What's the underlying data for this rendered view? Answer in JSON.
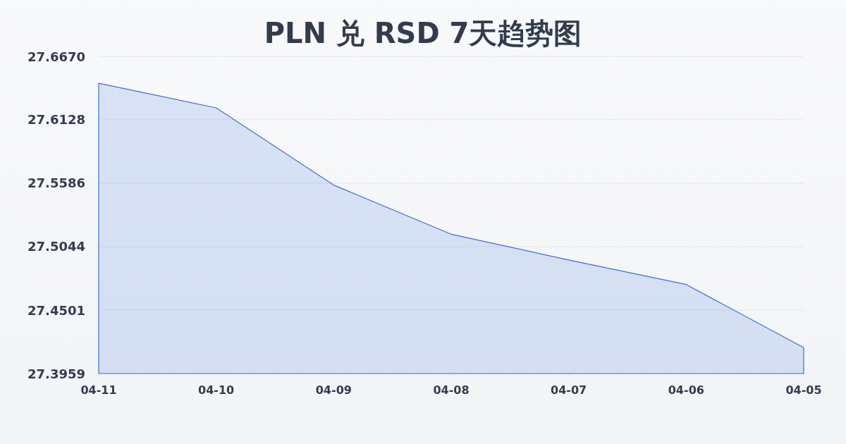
{
  "chart_data": {
    "type": "area",
    "title": "PLN 兑 RSD 7天趋势图",
    "categories": [
      "04-11",
      "04-10",
      "04-09",
      "04-08",
      "04-07",
      "04-06",
      "04-05"
    ],
    "series": [
      {
        "color": "#3b6fd8",
        "values": [
          27.644,
          27.623,
          27.557,
          27.515,
          27.493,
          27.472,
          27.418
        ]
      }
    ],
    "ylim": [
      27.3959,
      27.667
    ],
    "yticks": [
      27.3959,
      27.4501,
      27.5044,
      27.5586,
      27.6128,
      {
        "value": 27.667,
        "label": "27.6670"
      }
    ],
    "grid": "y"
  }
}
